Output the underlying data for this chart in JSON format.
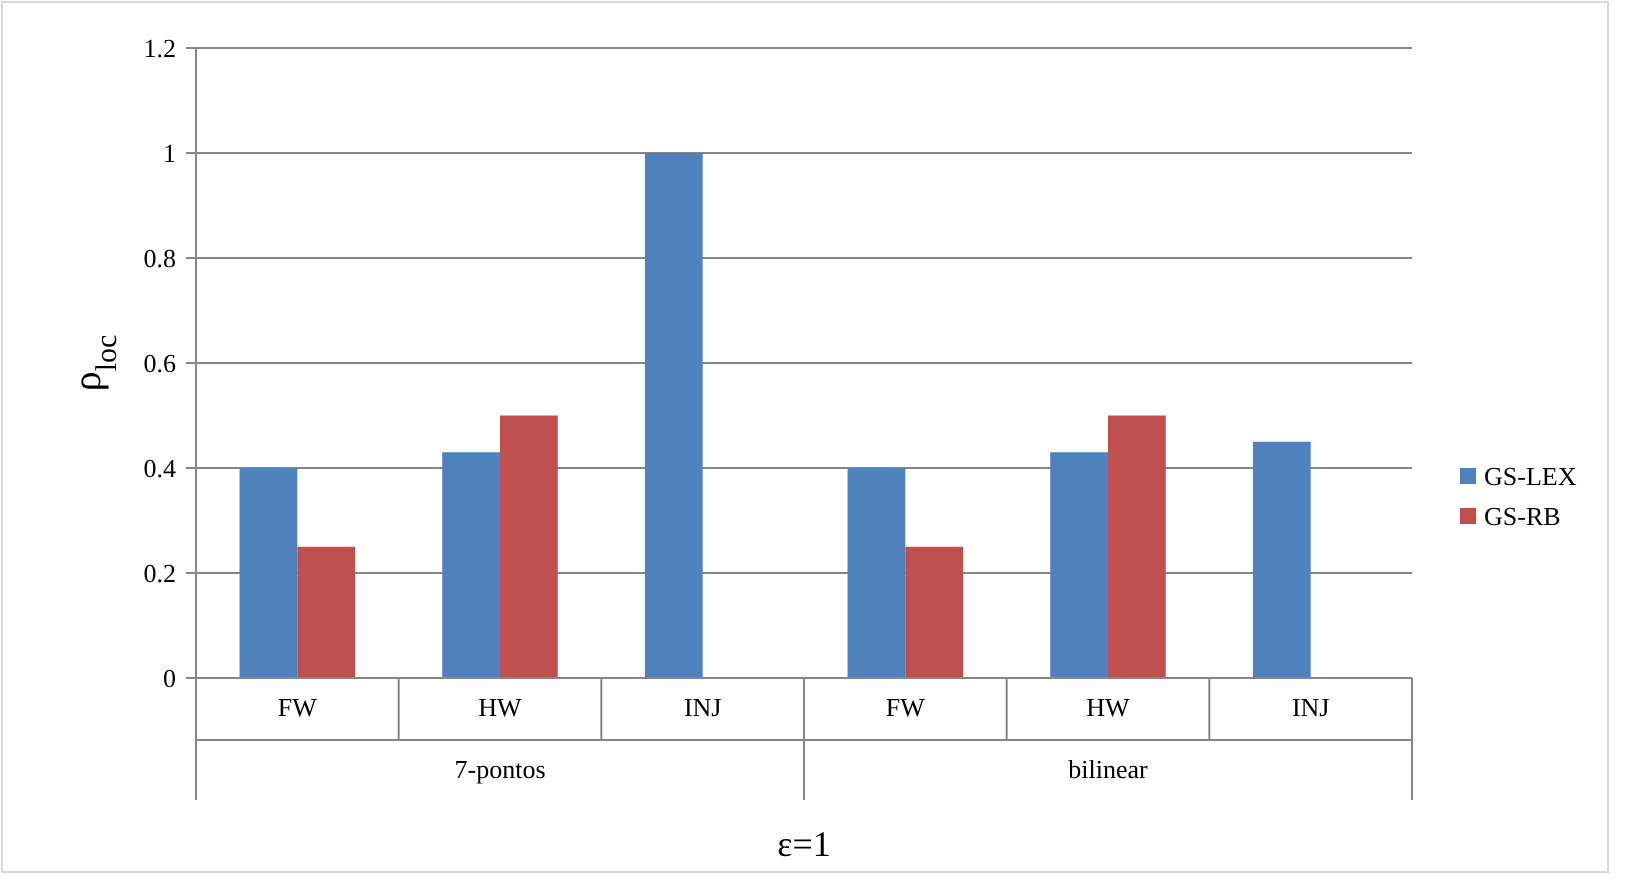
{
  "chart_data": {
    "type": "bar",
    "ylabel": "ρ$_{loc}$",
    "xlabel": "ε=1",
    "categories": [
      "FW",
      "HW",
      "INJ",
      "FW",
      "HW",
      "INJ"
    ],
    "series": [
      {
        "name": "GS-LEX",
        "color": "#4f81bd",
        "values": [
          0.4,
          0.43,
          1,
          0.4,
          0.43,
          0.45
        ]
      },
      {
        "name": "GS-RB",
        "color": "#c0504d",
        "values": [
          0.25,
          0.5,
          null,
          0.25,
          0.5,
          null
        ]
      }
    ],
    "annotations": [
      "7-pontos",
      "bilinear"
    ],
    "ylim": [
      0,
      1.2
    ],
    "yticks": [
      0,
      0.2,
      0.4,
      0.6,
      0.8,
      1,
      1.2
    ],
    "grid": "y",
    "legend": "right"
  }
}
